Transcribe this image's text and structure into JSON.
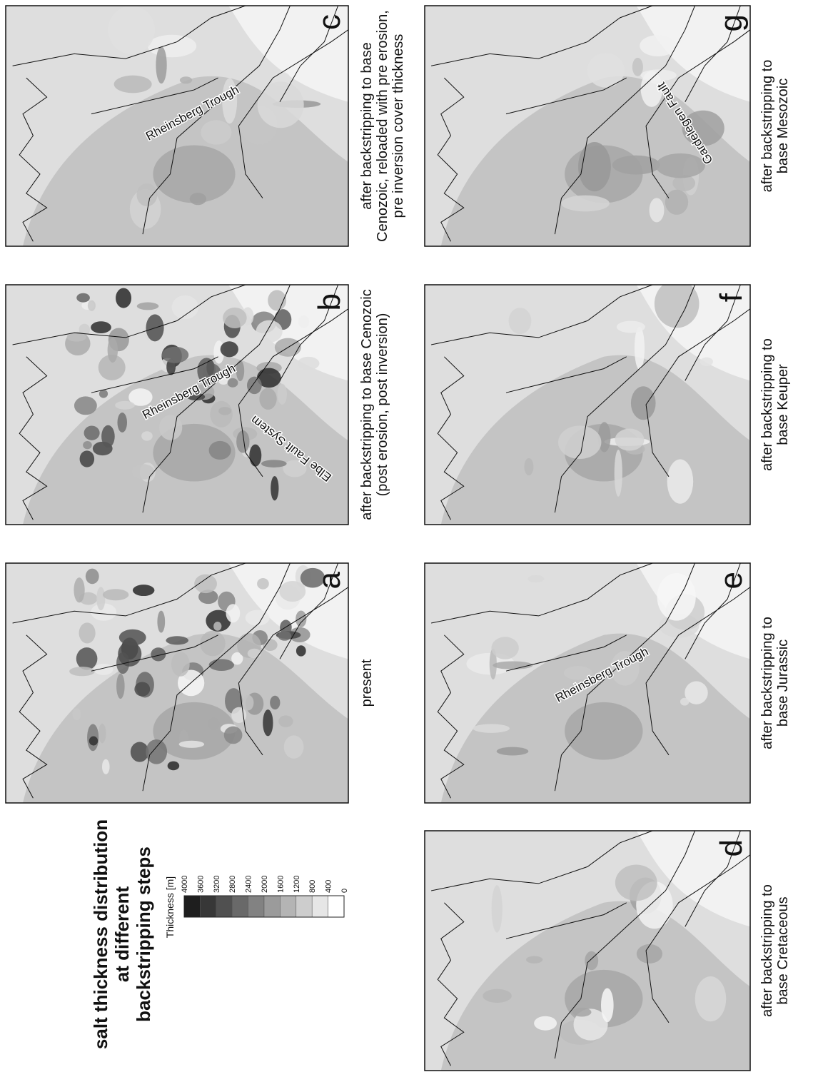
{
  "title": {
    "lines": [
      "salt thickness distribution",
      "at different",
      "backstripping steps"
    ]
  },
  "legend": {
    "title": "Thickness [m]",
    "labels": [
      4000,
      3600,
      3200,
      2800,
      2400,
      2000,
      1600,
      1200,
      800,
      400,
      0
    ]
  },
  "panels": [
    {
      "letter": "a",
      "caption": [
        "present"
      ],
      "annotations": []
    },
    {
      "letter": "b",
      "caption": [
        "after backstripping to base Cenozoic",
        "(post erosion, post inversion)"
      ],
      "annotations": [
        "Rheinsberg Trough",
        "Elbe Fault System"
      ]
    },
    {
      "letter": "c",
      "caption": [
        "after backstripping to base",
        "Cenozoic, reloaded with pre erosion,",
        "pre inversion cover thickness"
      ],
      "annotations": [
        "Rheinsberg Trough"
      ]
    },
    {
      "letter": "d",
      "caption": [
        "after backstripping to",
        "base Cretaceous"
      ],
      "annotations": []
    },
    {
      "letter": "e",
      "caption": [
        "after backstripping to",
        "base Jurassic"
      ],
      "annotations": [
        "Rheinsberg Trough"
      ]
    },
    {
      "letter": "f",
      "caption": [
        "after backstripping to",
        "base Keuper"
      ],
      "annotations": []
    },
    {
      "letter": "g",
      "caption": [
        "after backstripping to",
        "base Mesozoic"
      ],
      "annotations": [
        "Gardelegen Fault"
      ]
    }
  ]
}
